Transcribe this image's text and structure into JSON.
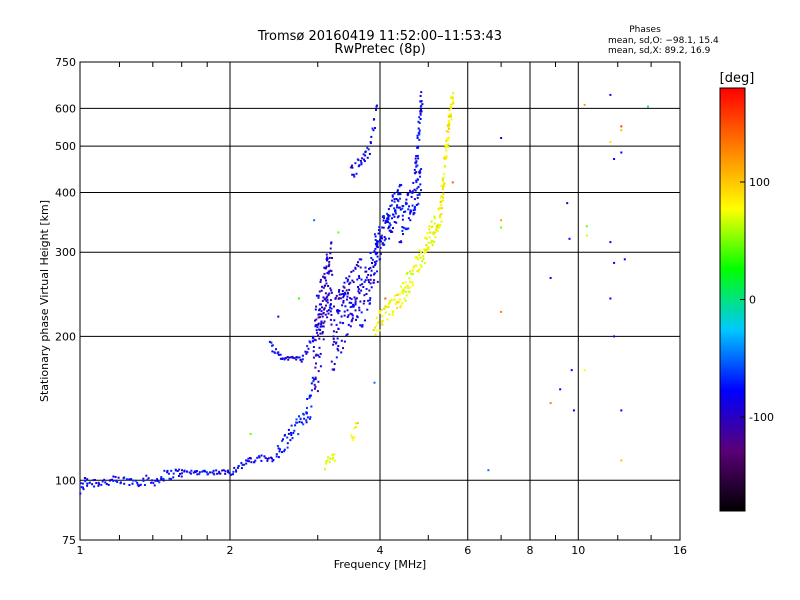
{
  "chart_data": {
    "type": "scatter",
    "title": "Tromsø 20160419 11:52:00–11:53:43",
    "subtitle": "RwPretec (8p)",
    "xlabel": "Frequency [MHz]",
    "ylabel": "Stationary phase Virtual Height [km]",
    "x_scale": "log",
    "y_scale": "log",
    "xlim": [
      1,
      16
    ],
    "ylim": [
      75,
      750
    ],
    "x_ticks": [
      1,
      2,
      4,
      6,
      8,
      10,
      16
    ],
    "y_ticks": [
      75,
      100,
      200,
      300,
      400,
      500,
      600,
      750
    ],
    "phase_info": {
      "title": "Phases",
      "o_line": "mean, sd,O: −98.1, 15.4",
      "x_line": "mean, sd,X:  89.2, 16.9"
    },
    "colorbar": {
      "label": "[deg]",
      "range": [
        -180,
        180
      ],
      "ticks": [
        100,
        0,
        -100
      ],
      "colors": [
        "#000000",
        "#5a0078",
        "#0000ff",
        "#00c8ff",
        "#00ff00",
        "#ffff00",
        "#ff8000",
        "#ff0000"
      ]
    },
    "segments": [
      {
        "f0": 1.0,
        "h0": 95,
        "f1": 1.03,
        "h1": 101,
        "n": 10,
        "jitter": 3,
        "phase": -100
      },
      {
        "f0": 1.03,
        "h0": 99,
        "f1": 1.45,
        "h1": 100,
        "n": 60,
        "jitter": 2.5,
        "phase": -100
      },
      {
        "f0": 1.45,
        "h0": 102,
        "f1": 1.6,
        "h1": 104,
        "n": 20,
        "jitter": 2.5,
        "phase": -100
      },
      {
        "f0": 1.6,
        "h0": 104,
        "f1": 2.0,
        "h1": 104,
        "n": 40,
        "jitter": 1.2,
        "phase": -100
      },
      {
        "f0": 2.0,
        "h0": 104,
        "f1": 2.2,
        "h1": 110,
        "n": 20,
        "jitter": 2,
        "phase": -100
      },
      {
        "f0": 2.2,
        "h0": 110,
        "f1": 2.5,
        "h1": 112,
        "n": 22,
        "jitter": 2,
        "phase": -100
      },
      {
        "f0": 2.5,
        "h0": 115,
        "f1": 2.9,
        "h1": 140,
        "n": 45,
        "jitter": 5,
        "phase": -95
      },
      {
        "f0": 2.85,
        "h0": 140,
        "f1": 2.95,
        "h1": 165,
        "n": 12,
        "jitter": 4,
        "phase": -90
      },
      {
        "f0": 2.4,
        "h0": 193,
        "f1": 2.55,
        "h1": 180,
        "n": 14,
        "jitter": 3,
        "phase": -100
      },
      {
        "f0": 2.55,
        "h0": 180,
        "f1": 2.8,
        "h1": 180,
        "n": 18,
        "jitter": 1.5,
        "phase": -100
      },
      {
        "f0": 2.8,
        "h0": 180,
        "f1": 2.95,
        "h1": 200,
        "n": 12,
        "jitter": 3,
        "phase": -100
      },
      {
        "f0": 2.95,
        "h0": 180,
        "f1": 3.2,
        "h1": 280,
        "n": 140,
        "jitter": 45,
        "phase": -115
      },
      {
        "f0": 3.2,
        "h0": 200,
        "f1": 3.65,
        "h1": 260,
        "n": 130,
        "jitter": 35,
        "phase": -110
      },
      {
        "f0": 3.65,
        "h0": 230,
        "f1": 3.95,
        "h1": 290,
        "n": 60,
        "jitter": 30,
        "phase": -105
      },
      {
        "f0": 3.9,
        "h0": 300,
        "f1": 4.4,
        "h1": 390,
        "n": 110,
        "jitter": 30,
        "phase": -100
      },
      {
        "f0": 4.4,
        "h0": 340,
        "f1": 4.85,
        "h1": 420,
        "n": 70,
        "jitter": 30,
        "phase": -100
      },
      {
        "f0": 4.7,
        "h0": 420,
        "f1": 4.85,
        "h1": 630,
        "n": 45,
        "jitter": 20,
        "phase": -100
      },
      {
        "f0": 3.5,
        "h0": 440,
        "f1": 3.8,
        "h1": 480,
        "n": 25,
        "jitter": 20,
        "phase": -100
      },
      {
        "f0": 3.8,
        "h0": 490,
        "f1": 3.95,
        "h1": 600,
        "n": 12,
        "jitter": 20,
        "phase": -100
      },
      {
        "f0": 3.1,
        "h0": 108,
        "f1": 3.25,
        "h1": 112,
        "n": 12,
        "jitter": 3,
        "phase": 90
      },
      {
        "f0": 3.5,
        "h0": 122,
        "f1": 3.6,
        "h1": 130,
        "n": 8,
        "jitter": 3,
        "phase": 100
      },
      {
        "f0": 3.9,
        "h0": 210,
        "f1": 4.4,
        "h1": 240,
        "n": 45,
        "jitter": 10,
        "phase": 100
      },
      {
        "f0": 4.4,
        "h0": 240,
        "f1": 4.9,
        "h1": 300,
        "n": 55,
        "jitter": 15,
        "phase": 90
      },
      {
        "f0": 4.9,
        "h0": 300,
        "f1": 5.3,
        "h1": 360,
        "n": 55,
        "jitter": 20,
        "phase": 95
      },
      {
        "f0": 5.3,
        "h0": 360,
        "f1": 5.6,
        "h1": 640,
        "n": 75,
        "jitter": 25,
        "phase": 100
      }
    ],
    "scatter": [
      {
        "f": 2.5,
        "h": 220,
        "phase": -110
      },
      {
        "f": 2.75,
        "h": 240,
        "phase": 20
      },
      {
        "f": 2.2,
        "h": 125,
        "phase": 40
      },
      {
        "f": 2.95,
        "h": 350,
        "phase": -60
      },
      {
        "f": 3.3,
        "h": 330,
        "phase": 40
      },
      {
        "f": 4.1,
        "h": 240,
        "phase": 150
      },
      {
        "f": 3.9,
        "h": 160,
        "phase": -60
      },
      {
        "f": 5.6,
        "h": 420,
        "phase": 150
      },
      {
        "f": 6.6,
        "h": 105,
        "phase": -60
      },
      {
        "f": 7.0,
        "h": 520,
        "phase": -100
      },
      {
        "f": 7.0,
        "h": 350,
        "phase": 130
      },
      {
        "f": 7.0,
        "h": 338,
        "phase": 40
      },
      {
        "f": 7.0,
        "h": 225,
        "phase": 140
      },
      {
        "f": 8.8,
        "h": 265,
        "phase": -110
      },
      {
        "f": 8.8,
        "h": 145,
        "phase": 140
      },
      {
        "f": 9.2,
        "h": 155,
        "phase": -100
      },
      {
        "f": 9.5,
        "h": 380,
        "phase": -110
      },
      {
        "f": 9.6,
        "h": 320,
        "phase": -100
      },
      {
        "f": 9.7,
        "h": 170,
        "phase": -100
      },
      {
        "f": 9.8,
        "h": 140,
        "phase": -100
      },
      {
        "f": 10.3,
        "h": 610,
        "phase": 130
      },
      {
        "f": 10.4,
        "h": 340,
        "phase": 40
      },
      {
        "f": 10.4,
        "h": 325,
        "phase": 80
      },
      {
        "f": 10.3,
        "h": 170,
        "phase": 100
      },
      {
        "f": 11.6,
        "h": 640,
        "phase": -110
      },
      {
        "f": 11.6,
        "h": 510,
        "phase": 110
      },
      {
        "f": 11.8,
        "h": 470,
        "phase": -100
      },
      {
        "f": 11.6,
        "h": 315,
        "phase": -110
      },
      {
        "f": 11.8,
        "h": 285,
        "phase": -100
      },
      {
        "f": 11.6,
        "h": 240,
        "phase": -100
      },
      {
        "f": 12.2,
        "h": 550,
        "phase": 160
      },
      {
        "f": 12.2,
        "h": 540,
        "phase": 120
      },
      {
        "f": 12.2,
        "h": 485,
        "phase": -100
      },
      {
        "f": 12.4,
        "h": 290,
        "phase": -100
      },
      {
        "f": 12.2,
        "h": 140,
        "phase": -100
      },
      {
        "f": 12.2,
        "h": 110,
        "phase": 120
      },
      {
        "f": 11.8,
        "h": 200,
        "phase": -100
      },
      {
        "f": 13.8,
        "h": 605,
        "phase": -20
      }
    ]
  }
}
